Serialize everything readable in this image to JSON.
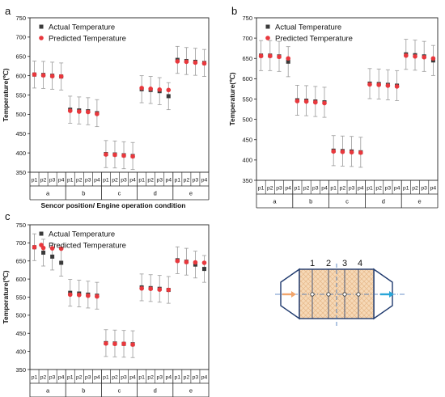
{
  "figure": {
    "shared_xlabel": "Sencor position/ Engine operation condition"
  },
  "chart_data": [
    {
      "type": "scatter",
      "panel_label": "a",
      "ylabel": "Temperature(℃)",
      "ylim": [
        350,
        750
      ],
      "yticks": [
        350,
        400,
        450,
        500,
        550,
        600,
        650,
        700,
        750
      ],
      "groups": [
        "a",
        "b",
        "c",
        "d",
        "e"
      ],
      "positions": [
        "p1",
        "p2",
        "p3",
        "p4"
      ],
      "legend": "top-left",
      "series": [
        {
          "name": "Actual Temperature",
          "color": "#3a3a3a",
          "marker": "square",
          "values": [
            [
              603,
              602,
              600,
              598
            ],
            [
              512,
              510,
              508,
              503
            ],
            [
              397,
              396,
              394,
              392
            ],
            [
              565,
              563,
              560,
              547
            ],
            [
              641,
              638,
              636,
              633
            ]
          ]
        },
        {
          "name": "Predicted Temperature",
          "color": "#e8383d",
          "marker": "circle",
          "values": [
            [
              603,
              601,
              599,
              598
            ],
            [
              509,
              507,
              506,
              501
            ],
            [
              396,
              395,
              393,
              391
            ],
            [
              568,
              566,
              564,
              563
            ],
            [
              637,
              636,
              634,
              632
            ]
          ]
        }
      ],
      "error": 35
    },
    {
      "type": "scatter",
      "panel_label": "b",
      "ylabel": "Temperature(℃)",
      "ylim": [
        350,
        750
      ],
      "yticks": [
        350,
        400,
        450,
        500,
        550,
        600,
        650,
        700,
        750
      ],
      "groups": [
        "a",
        "b",
        "c",
        "d",
        "e"
      ],
      "positions": [
        "p1",
        "p2",
        "p3",
        "p4"
      ],
      "legend": "top-left",
      "series": [
        {
          "name": "Actual Temperature",
          "color": "#3a3a3a",
          "marker": "square",
          "values": [
            [
              657,
              657,
              655,
              642
            ],
            [
              547,
              546,
              544,
              542
            ],
            [
              423,
              422,
              421,
              419
            ],
            [
              588,
              587,
              585,
              583
            ],
            [
              660,
              658,
              655,
              645
            ]
          ]
        },
        {
          "name": "Predicted Temperature",
          "color": "#e8383d",
          "marker": "circle",
          "values": [
            [
              656,
              656,
              654,
              650
            ],
            [
              545,
              544,
              542,
              540
            ],
            [
              421,
              420,
              419,
              418
            ],
            [
              586,
              585,
              583,
              581
            ],
            [
              657,
              655,
              653,
              650
            ]
          ]
        }
      ],
      "error": 37
    },
    {
      "type": "scatter",
      "panel_label": "c",
      "ylabel": "Temperature(℃)",
      "ylim": [
        350,
        750
      ],
      "yticks": [
        350,
        400,
        450,
        500,
        550,
        600,
        650,
        700,
        750
      ],
      "groups": [
        "a",
        "b",
        "c",
        "d",
        "e"
      ],
      "positions": [
        "p1",
        "p2",
        "p3",
        "p4"
      ],
      "legend": "top-left",
      "series": [
        {
          "name": "Actual Temperature",
          "color": "#3a3a3a",
          "marker": "square",
          "values": [
            [
              688,
              673,
              662,
              645
            ],
            [
              562,
              560,
              557,
              554
            ],
            [
              423,
              422,
              421,
              420
            ],
            [
              577,
              575,
              573,
              570
            ],
            [
              652,
              648,
              640,
              628
            ]
          ]
        },
        {
          "name": "Predicted Temperature",
          "color": "#e8383d",
          "marker": "circle",
          "values": [
            [
              688,
              686,
              685,
              684
            ],
            [
              557,
              556,
              554,
              552
            ],
            [
              422,
              421,
              421,
              419
            ],
            [
              574,
              573,
              571,
              570
            ],
            [
              650,
              647,
              646,
              645
            ]
          ]
        }
      ],
      "error": 37
    }
  ],
  "diagram": {
    "sensor_labels": [
      "1",
      "2",
      "3",
      "4"
    ],
    "colors": {
      "fill": "#f6d9b7",
      "hatch": "#e7b98a",
      "outline": "#1f3a6e",
      "inlet_arrow": "#f2a56b",
      "outlet_arrow": "#2aa6d8",
      "centerline": "#3b6fb6"
    }
  }
}
